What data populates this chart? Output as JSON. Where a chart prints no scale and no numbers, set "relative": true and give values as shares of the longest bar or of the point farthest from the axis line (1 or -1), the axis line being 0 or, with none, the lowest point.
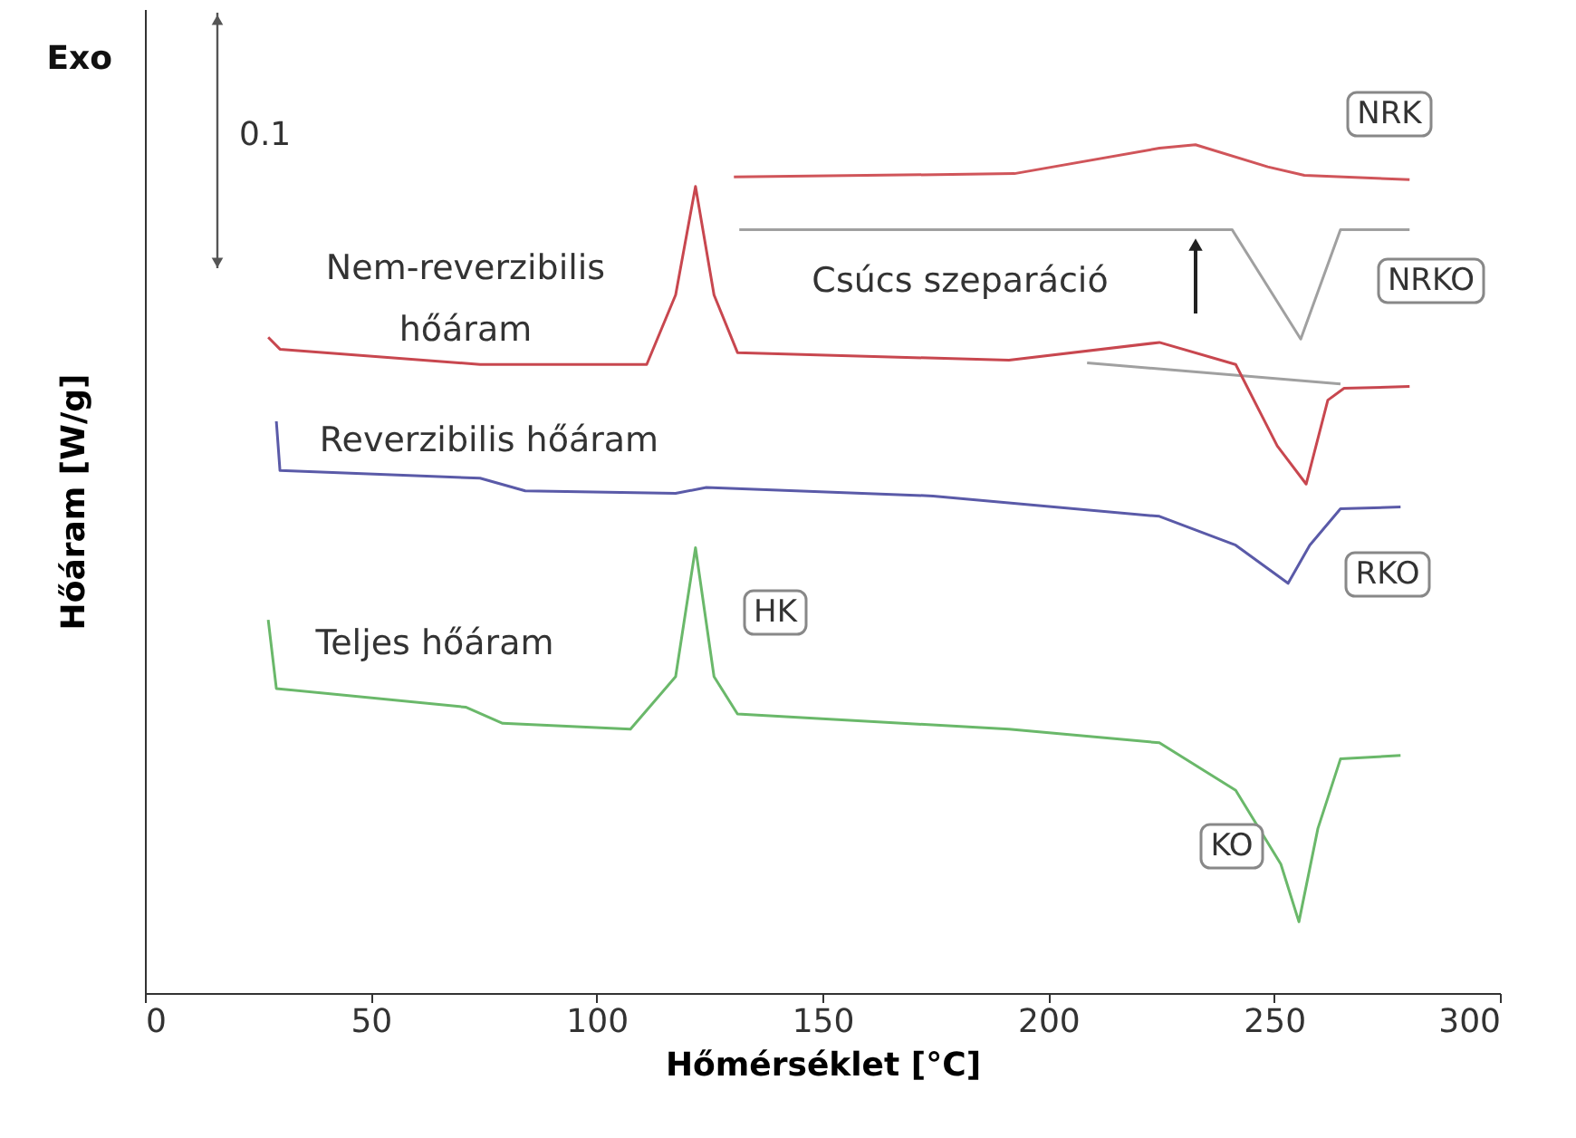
{
  "chart_data": {
    "type": "line",
    "relative": true,
    "xlabel": "Hőmérséklet [°C]",
    "ylabel": "Hőáram [W/g]",
    "xlim": [
      0,
      300
    ],
    "xticks": [
      0,
      50,
      100,
      150,
      200,
      250,
      300
    ],
    "grid": false,
    "marker": "none",
    "line_style": "solid",
    "series": [
      {
        "color": "#d0555a",
        "x": [
          130.4,
          192.5,
          224.6,
          232.6,
          248.6,
          256.7,
          280.0
        ],
        "values": [
          0.962,
          0.966,
          0.996,
          1.0,
          0.974,
          0.964,
          0.959
        ]
      },
      {
        "color": "#a0a0a0",
        "x": [
          131.6,
          240.7,
          255.9,
          264.7,
          280.0
        ],
        "values": [
          0.9,
          0.9,
          0.771,
          0.9,
          0.9
        ]
      },
      {
        "color": "#a0a0a0",
        "x": [
          208.6,
          264.7
        ],
        "values": [
          0.743,
          0.718
        ]
      },
      {
        "color": "#c8474f",
        "x": [
          27.3,
          29.9,
          74.2,
          111.1,
          117.5,
          121.9,
          126.0,
          131.2,
          191.3,
          224.6,
          241.5,
          250.7,
          257.1,
          261.9,
          265.5,
          280.0
        ],
        "values": [
          0.773,
          0.759,
          0.741,
          0.741,
          0.823,
          0.951,
          0.823,
          0.755,
          0.746,
          0.767,
          0.741,
          0.645,
          0.6,
          0.699,
          0.713,
          0.715
        ]
      },
      {
        "color": "#5a5aa8",
        "x": [
          29.1,
          29.9,
          74.2,
          84.2,
          117.5,
          124.3,
          174.5,
          224.6,
          241.5,
          253.1,
          257.9,
          264.7,
          278.0
        ],
        "values": [
          0.674,
          0.616,
          0.607,
          0.592,
          0.589,
          0.596,
          0.586,
          0.562,
          0.528,
          0.483,
          0.528,
          0.571,
          0.573
        ]
      },
      {
        "color": "#6ab86a",
        "x": [
          27.3,
          29.1,
          71.0,
          79.2,
          107.5,
          117.5,
          121.9,
          126.0,
          131.2,
          191.3,
          224.6,
          241.5,
          251.5,
          255.5,
          259.7,
          264.7,
          278.0
        ],
        "values": [
          0.44,
          0.359,
          0.337,
          0.318,
          0.311,
          0.373,
          0.525,
          0.373,
          0.329,
          0.311,
          0.295,
          0.239,
          0.152,
          0.084,
          0.194,
          0.276,
          0.28
        ]
      }
    ],
    "annotations": [
      "Exo",
      "0.1",
      "Nem-reverzibilis\nhőáram",
      "Csúcs szeparáció",
      "Reverzibilis hőáram",
      "Teljes hőáram",
      "NRK",
      "NRKO",
      "RKO",
      "HK",
      "KO"
    ]
  }
}
